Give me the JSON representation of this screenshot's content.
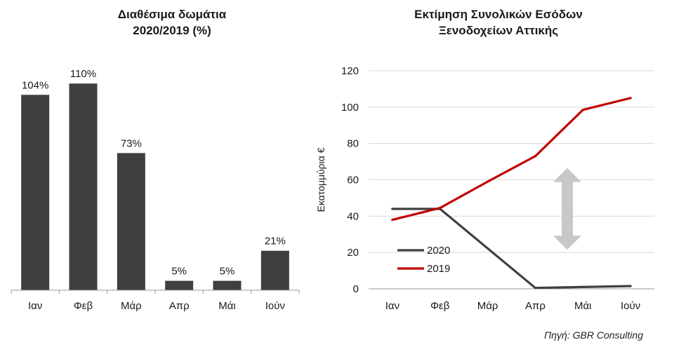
{
  "source": "Πηγή: GBR Consulting",
  "chart_data": [
    {
      "type": "bar",
      "title_line1": "Διαθέσιμα δωμάτια",
      "title_line2": "2020/2019 (%)",
      "categories": [
        "Ιαν",
        "Φεβ",
        "Μάρ",
        "Απρ",
        "Μάι",
        "Ιούν"
      ],
      "values": [
        104,
        110,
        73,
        5,
        5,
        21
      ],
      "value_labels": [
        "104%",
        "110%",
        "73%",
        "5%",
        "5%",
        "21%"
      ],
      "ylim": [
        0,
        115
      ],
      "bar_color": "#3f3f3f"
    },
    {
      "type": "line",
      "title_line1": "Εκτίμηση Συνολικών Εσόδων",
      "title_line2": "Ξενοδοχείων Αττικής",
      "ylabel": "Εκατομμύρια €",
      "categories": [
        "Ιαν",
        "Φεβ",
        "Μάρ",
        "Απρ",
        "Μάι",
        "Ιούν"
      ],
      "ylim": [
        0,
        120
      ],
      "yticks": [
        0,
        20,
        40,
        60,
        80,
        100,
        120
      ],
      "grid": true,
      "legend": "bottom-left",
      "annotation": "double-arrow between series at Apr–May",
      "series": [
        {
          "name": "2020",
          "values": [
            44,
            44,
            null,
            0.5,
            1,
            1.5
          ],
          "color": "#404040"
        },
        {
          "name": "2019",
          "values": [
            38,
            44.5,
            59,
            73,
            98.5,
            105
          ],
          "color": "#c00000"
        }
      ]
    }
  ]
}
